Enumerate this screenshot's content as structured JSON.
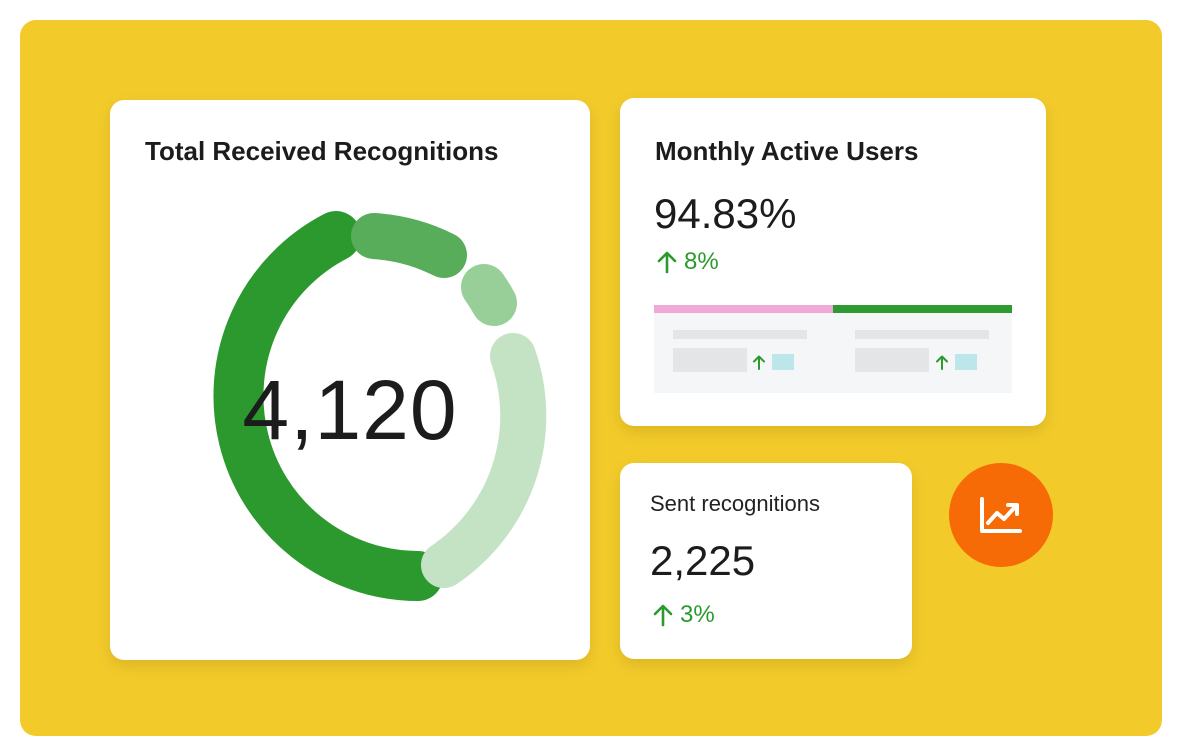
{
  "total_card": {
    "title": "Total Received Recognitions",
    "value": "4,120"
  },
  "mau_card": {
    "title": "Monthly Active Users",
    "value": "94.83%",
    "change": "8%"
  },
  "sent_card": {
    "title": "Sent recognitions",
    "value": "2,225",
    "change": "3%"
  },
  "fab": {
    "icon": "trending-up-icon"
  },
  "colors": {
    "background": "#f2cb2b",
    "green": "#2b9a2e",
    "accent_orange": "#f76b07",
    "pink": "#f0a8d8"
  }
}
